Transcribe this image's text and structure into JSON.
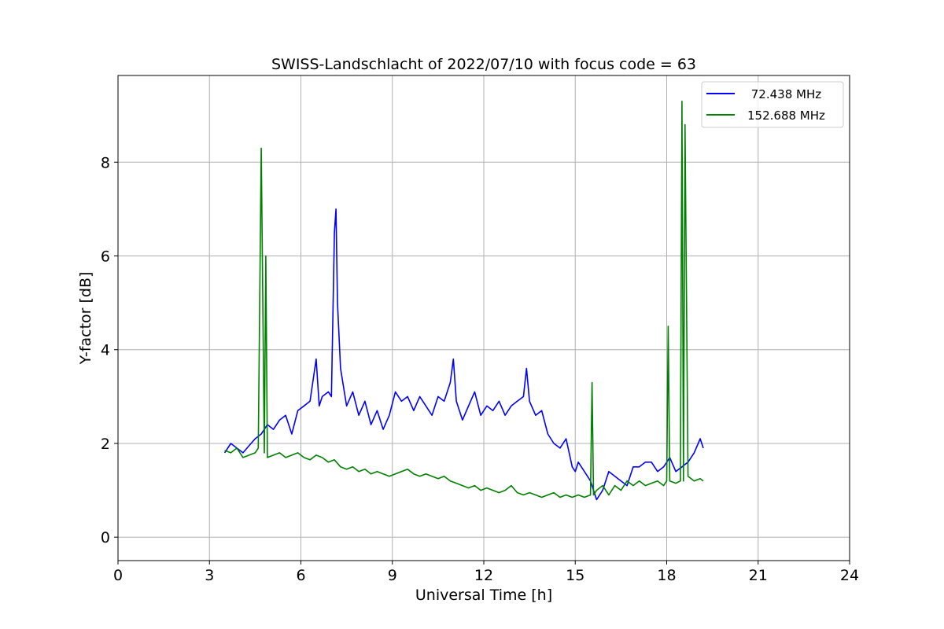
{
  "chart_data": {
    "type": "line",
    "title": "SWISS-Landschlacht of 2022/07/10 with focus code = 63",
    "xlabel": "Universal Time [h]",
    "ylabel": "Y-factor [dB]",
    "xlim": [
      0,
      24
    ],
    "ylim": [
      -0.5,
      9.85
    ],
    "xticks": [
      0,
      3,
      6,
      9,
      12,
      15,
      18,
      21,
      24
    ],
    "xtick_labels": [
      "0",
      "3",
      "6",
      "9",
      "12",
      "15",
      "18",
      "21",
      "24"
    ],
    "yticks": [
      0,
      2,
      4,
      6,
      8
    ],
    "ytick_labels": [
      "0",
      "2",
      "4",
      "6",
      "8"
    ],
    "grid": true,
    "legend_position": "top-right",
    "series": [
      {
        "name": " 72.438 MHz",
        "color": "#0000ff",
        "x": [
          3.5,
          3.7,
          3.9,
          4.1,
          4.3,
          4.5,
          4.7,
          4.9,
          5.1,
          5.3,
          5.5,
          5.7,
          5.9,
          6.1,
          6.3,
          6.5,
          6.6,
          6.7,
          6.9,
          7.0,
          7.1,
          7.15,
          7.2,
          7.3,
          7.5,
          7.7,
          7.9,
          8.1,
          8.3,
          8.5,
          8.7,
          8.9,
          9.1,
          9.3,
          9.5,
          9.7,
          9.9,
          10.1,
          10.3,
          10.5,
          10.7,
          10.9,
          11.0,
          11.1,
          11.3,
          11.5,
          11.7,
          11.9,
          12.1,
          12.3,
          12.5,
          12.7,
          12.9,
          13.1,
          13.3,
          13.4,
          13.5,
          13.7,
          13.9,
          14.1,
          14.3,
          14.5,
          14.7,
          14.9,
          15.0,
          15.1,
          15.3,
          15.5,
          15.7,
          15.9,
          16.1,
          16.3,
          16.5,
          16.7,
          16.9,
          17.1,
          17.3,
          17.5,
          17.7,
          17.9,
          18.1,
          18.3,
          18.5,
          18.7,
          18.9,
          19.1,
          19.2
        ],
        "values": [
          1.8,
          2.0,
          1.9,
          1.8,
          1.95,
          2.1,
          2.2,
          2.4,
          2.3,
          2.5,
          2.6,
          2.2,
          2.7,
          2.8,
          2.9,
          3.8,
          2.8,
          3.0,
          3.1,
          3.0,
          6.5,
          7.0,
          5.0,
          3.6,
          2.8,
          3.1,
          2.6,
          2.9,
          2.4,
          2.7,
          2.3,
          2.6,
          3.1,
          2.9,
          3.0,
          2.7,
          3.0,
          2.8,
          2.6,
          3.0,
          2.9,
          3.3,
          3.8,
          2.9,
          2.5,
          2.8,
          3.1,
          2.6,
          2.8,
          2.7,
          2.9,
          2.6,
          2.8,
          2.9,
          3.0,
          3.6,
          2.9,
          2.6,
          2.7,
          2.2,
          2.0,
          1.9,
          2.1,
          1.5,
          1.4,
          1.6,
          1.4,
          1.2,
          0.8,
          1.0,
          1.4,
          1.3,
          1.2,
          1.1,
          1.5,
          1.5,
          1.6,
          1.6,
          1.4,
          1.5,
          1.7,
          1.4,
          1.5,
          1.6,
          1.8,
          2.1,
          1.9
        ]
      },
      {
        "name": "152.688 MHz",
        "color": "#008000",
        "x": [
          3.5,
          3.7,
          3.9,
          4.1,
          4.3,
          4.5,
          4.6,
          4.7,
          4.8,
          4.85,
          4.9,
          5.1,
          5.3,
          5.5,
          5.7,
          5.9,
          6.1,
          6.3,
          6.5,
          6.7,
          6.9,
          7.1,
          7.3,
          7.5,
          7.7,
          7.9,
          8.1,
          8.3,
          8.5,
          8.7,
          8.9,
          9.1,
          9.3,
          9.5,
          9.7,
          9.9,
          10.1,
          10.3,
          10.5,
          10.7,
          10.9,
          11.1,
          11.3,
          11.5,
          11.7,
          11.9,
          12.1,
          12.3,
          12.5,
          12.7,
          12.9,
          13.1,
          13.3,
          13.5,
          13.7,
          13.9,
          14.1,
          14.3,
          14.5,
          14.7,
          14.9,
          15.1,
          15.3,
          15.5,
          15.55,
          15.6,
          15.7,
          15.9,
          16.1,
          16.3,
          16.5,
          16.7,
          16.9,
          17.1,
          17.3,
          17.5,
          17.7,
          17.9,
          18.0,
          18.05,
          18.1,
          18.3,
          18.45,
          18.5,
          18.55,
          18.6,
          18.7,
          18.9,
          19.1,
          19.2
        ],
        "values": [
          1.85,
          1.8,
          1.9,
          1.7,
          1.75,
          1.8,
          1.9,
          8.3,
          1.8,
          6.0,
          1.7,
          1.75,
          1.8,
          1.7,
          1.75,
          1.8,
          1.7,
          1.65,
          1.75,
          1.7,
          1.6,
          1.65,
          1.5,
          1.45,
          1.5,
          1.4,
          1.45,
          1.35,
          1.4,
          1.35,
          1.3,
          1.35,
          1.4,
          1.45,
          1.35,
          1.3,
          1.35,
          1.3,
          1.25,
          1.3,
          1.2,
          1.15,
          1.1,
          1.05,
          1.1,
          1.0,
          1.05,
          1.0,
          0.95,
          1.0,
          1.1,
          0.95,
          0.9,
          0.95,
          0.9,
          0.85,
          0.9,
          0.95,
          0.85,
          0.9,
          0.85,
          0.9,
          0.85,
          0.9,
          3.3,
          0.9,
          1.0,
          1.1,
          0.9,
          1.1,
          1.0,
          1.2,
          1.1,
          1.2,
          1.1,
          1.15,
          1.2,
          1.1,
          1.2,
          4.5,
          1.2,
          1.15,
          1.2,
          9.3,
          1.2,
          8.8,
          1.3,
          1.2,
          1.25,
          1.2
        ]
      }
    ]
  }
}
